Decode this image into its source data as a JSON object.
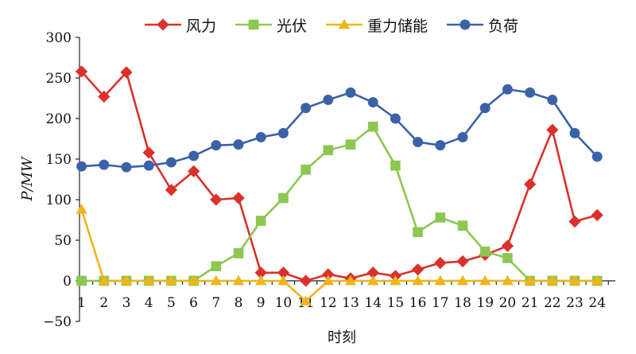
{
  "chart_data": {
    "type": "line",
    "x": [
      1,
      2,
      3,
      4,
      5,
      6,
      7,
      8,
      9,
      10,
      11,
      12,
      13,
      14,
      15,
      16,
      17,
      18,
      19,
      20,
      21,
      22,
      23,
      24
    ],
    "xlabel": "时刻",
    "ylabel": "P/MW",
    "ylim": [
      -50,
      300
    ],
    "yticks": [
      -50,
      0,
      50,
      100,
      150,
      200,
      250,
      300
    ],
    "ytick_labels": [
      "−50",
      "0",
      "50",
      "100",
      "150",
      "200",
      "250",
      "300"
    ],
    "legend_position": "top",
    "grid": false,
    "series": [
      {
        "name": "风力",
        "color": "#d9312b",
        "marker": "diamond",
        "values": [
          258,
          227,
          257,
          158,
          112,
          135,
          100,
          102,
          10,
          10,
          0,
          8,
          3,
          10,
          6,
          14,
          22,
          24,
          32,
          43,
          119,
          186,
          73,
          81
        ]
      },
      {
        "name": "光伏",
        "color": "#8cc751",
        "marker": "square",
        "values": [
          0,
          0,
          0,
          0,
          0,
          0,
          18,
          34,
          74,
          102,
          137,
          161,
          168,
          190,
          142,
          60,
          78,
          68,
          36,
          28,
          0,
          0,
          0,
          0
        ]
      },
      {
        "name": "重力储能",
        "color": "#f0b41c",
        "marker": "triangle",
        "values": [
          88,
          0,
          0,
          0,
          0,
          0,
          0,
          0,
          0,
          0,
          -25,
          0,
          0,
          0,
          0,
          0,
          0,
          0,
          0,
          0,
          0,
          0,
          0,
          0
        ]
      },
      {
        "name": "负荷",
        "color": "#3b62a8",
        "marker": "circle",
        "values": [
          141,
          143,
          140,
          142,
          146,
          154,
          167,
          168,
          177,
          182,
          213,
          223,
          232,
          220,
          200,
          171,
          167,
          177,
          213,
          236,
          232,
          223,
          182,
          153
        ]
      }
    ]
  }
}
